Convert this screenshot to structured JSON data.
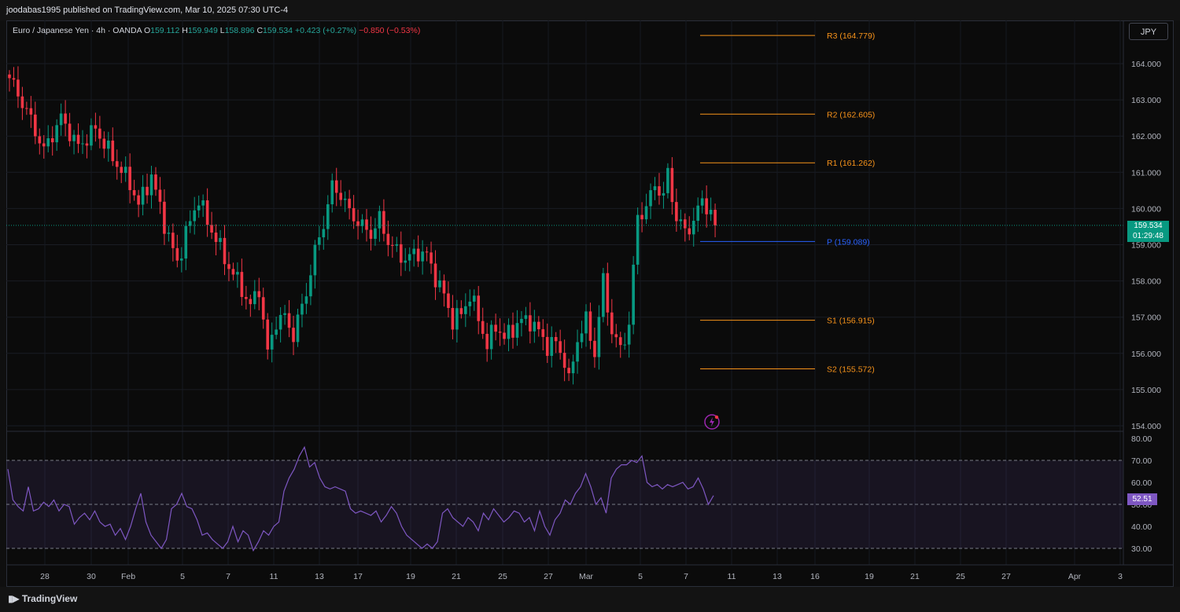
{
  "header": {
    "published": "joodabas1995 published on TradingView.com, Mar 10, 2025 07:30 UTC-4"
  },
  "legend": {
    "symbol": "Euro / Japanese Yen · 4h · OANDA",
    "o_label": "O",
    "o": "159.112",
    "h_label": "H",
    "h": "159.949",
    "l_label": "L",
    "l": "158.896",
    "c_label": "C",
    "c": "159.534",
    "change": "+0.423 (+0.27%)",
    "change2": "−0.850 (−0.53%)"
  },
  "currency_button": "JPY",
  "last_price": {
    "value": "159.534",
    "countdown": "01:29:48"
  },
  "rsi_value": "52.51",
  "brand": "TradingView",
  "chart_data": {
    "type": "candlestick",
    "price_axis": {
      "min": 154,
      "max": 164,
      "ticks": [
        "164.000",
        "163.000",
        "162.000",
        "161.000",
        "160.000",
        "159.000",
        "158.000",
        "157.000",
        "156.000",
        "155.000",
        "154.000"
      ]
    },
    "rsi_axis": {
      "min": 30,
      "max": 80,
      "ticks": [
        "80.00",
        "70.00",
        "60.00",
        "50.00",
        "40.00",
        "30.00"
      ],
      "bands": [
        30,
        50,
        70
      ]
    },
    "x_ticks": [
      "28",
      "30",
      "Feb",
      "5",
      "7",
      "11",
      "13",
      "17",
      "19",
      "21",
      "25",
      "27",
      "Mar",
      "5",
      "7",
      "11",
      "13",
      "16",
      "19",
      "21",
      "25",
      "27",
      "Apr",
      "3"
    ],
    "pivots": [
      {
        "label": "R3 (164.779)",
        "value": 164.779,
        "color": "#f7931a"
      },
      {
        "label": "R2 (162.605)",
        "value": 162.605,
        "color": "#f7931a"
      },
      {
        "label": "R1 (161.262)",
        "value": 161.262,
        "color": "#f7931a"
      },
      {
        "label": "P (159.089)",
        "value": 159.089,
        "color": "#2962ff"
      },
      {
        "label": "S1 (156.915)",
        "value": 156.915,
        "color": "#f7931a"
      },
      {
        "label": "S2 (155.572)",
        "value": 155.572,
        "color": "#f7931a"
      }
    ],
    "current_price": 159.534,
    "close_path": [
      [
        0,
        163.6
      ],
      [
        4,
        162.7
      ],
      [
        8,
        161.6
      ],
      [
        12,
        162.5
      ],
      [
        16,
        161.7
      ],
      [
        20,
        162.2
      ],
      [
        24,
        161.4
      ],
      [
        28,
        160.7
      ],
      [
        30,
        160.1
      ],
      [
        33,
        160.9
      ],
      [
        36,
        159.6
      ],
      [
        37,
        159.2
      ],
      [
        39,
        158.5
      ],
      [
        41,
        159.3
      ],
      [
        44,
        160.3
      ],
      [
        46,
        159.6
      ],
      [
        48,
        159.2
      ],
      [
        50,
        158.6
      ],
      [
        53,
        158.0
      ],
      [
        56,
        157.3
      ],
      [
        58,
        157.8
      ],
      [
        60,
        156.0
      ],
      [
        62,
        156.9
      ],
      [
        64,
        157.0
      ],
      [
        66,
        156.5
      ],
      [
        69,
        157.7
      ],
      [
        71,
        158.8
      ],
      [
        73,
        159.6
      ],
      [
        75,
        160.6
      ],
      [
        77,
        160.4
      ],
      [
        79,
        159.9
      ],
      [
        82,
        159.5
      ],
      [
        84,
        159.3
      ],
      [
        86,
        159.7
      ],
      [
        88,
        159.1
      ],
      [
        90,
        158.8
      ],
      [
        92,
        158.6
      ],
      [
        95,
        158.8
      ],
      [
        97,
        158.7
      ],
      [
        99,
        158.1
      ],
      [
        101,
        157.6
      ],
      [
        103,
        156.9
      ],
      [
        105,
        157.1
      ],
      [
        107,
        157.6
      ],
      [
        109,
        157.0
      ],
      [
        111,
        156.2
      ],
      [
        113,
        156.8
      ],
      [
        115,
        156.4
      ],
      [
        117,
        156.7
      ],
      [
        119,
        156.9
      ],
      [
        121,
        156.9
      ],
      [
        123,
        156.6
      ],
      [
        125,
        156.2
      ],
      [
        127,
        156.3
      ],
      [
        129,
        155.8
      ],
      [
        130,
        155.2
      ],
      [
        132,
        156.4
      ],
      [
        134,
        156.9
      ],
      [
        136,
        156.0
      ],
      [
        138,
        158.0
      ],
      [
        140,
        156.6
      ],
      [
        142,
        156.1
      ],
      [
        144,
        156.8
      ],
      [
        146,
        159.8
      ],
      [
        148,
        160.0
      ],
      [
        150,
        160.7
      ],
      [
        152,
        160.3
      ],
      [
        153,
        161.0
      ],
      [
        155,
        159.7
      ],
      [
        157,
        159.4
      ],
      [
        159,
        159.6
      ],
      [
        161,
        160.3
      ],
      [
        163,
        159.8
      ],
      [
        164,
        159.5
      ]
    ],
    "rsi_path": [
      [
        0,
        66
      ],
      [
        1,
        52
      ],
      [
        2,
        49
      ],
      [
        3,
        47
      ],
      [
        4,
        58
      ],
      [
        5,
        47
      ],
      [
        6,
        48
      ],
      [
        7,
        51
      ],
      [
        8,
        49
      ],
      [
        9,
        52
      ],
      [
        10,
        47
      ],
      [
        11,
        50
      ],
      [
        12,
        49
      ],
      [
        13,
        41
      ],
      [
        14,
        44
      ],
      [
        15,
        46
      ],
      [
        16,
        43
      ],
      [
        17,
        47
      ],
      [
        18,
        42
      ],
      [
        19,
        40
      ],
      [
        20,
        41
      ],
      [
        21,
        36
      ],
      [
        22,
        39
      ],
      [
        23,
        34
      ],
      [
        24,
        40
      ],
      [
        25,
        48
      ],
      [
        26,
        55
      ],
      [
        27,
        42
      ],
      [
        28,
        36
      ],
      [
        29,
        33
      ],
      [
        30,
        30
      ],
      [
        31,
        34
      ],
      [
        32,
        48
      ],
      [
        33,
        50
      ],
      [
        34,
        55
      ],
      [
        35,
        49
      ],
      [
        36,
        48
      ],
      [
        37,
        43
      ],
      [
        38,
        36
      ],
      [
        39,
        37
      ],
      [
        40,
        34
      ],
      [
        41,
        32
      ],
      [
        42,
        30
      ],
      [
        43,
        33
      ],
      [
        44,
        40
      ],
      [
        45,
        33
      ],
      [
        46,
        38
      ],
      [
        47,
        36
      ],
      [
        48,
        29
      ],
      [
        49,
        33
      ],
      [
        50,
        38
      ],
      [
        51,
        36
      ],
      [
        52,
        40
      ],
      [
        53,
        42
      ],
      [
        54,
        56
      ],
      [
        55,
        62
      ],
      [
        56,
        66
      ],
      [
        57,
        72
      ],
      [
        58,
        76
      ],
      [
        59,
        67
      ],
      [
        60,
        69
      ],
      [
        61,
        62
      ],
      [
        62,
        58
      ],
      [
        63,
        57
      ],
      [
        64,
        58
      ],
      [
        65,
        57
      ],
      [
        66,
        56
      ],
      [
        67,
        48
      ],
      [
        68,
        46
      ],
      [
        69,
        47
      ],
      [
        70,
        46
      ],
      [
        71,
        45
      ],
      [
        72,
        47
      ],
      [
        73,
        42
      ],
      [
        74,
        45
      ],
      [
        75,
        49
      ],
      [
        76,
        46
      ],
      [
        77,
        40
      ],
      [
        78,
        36
      ],
      [
        79,
        34
      ],
      [
        80,
        32
      ],
      [
        81,
        30
      ],
      [
        82,
        32
      ],
      [
        83,
        30
      ],
      [
        84,
        33
      ],
      [
        85,
        46
      ],
      [
        86,
        48
      ],
      [
        87,
        44
      ],
      [
        88,
        42
      ],
      [
        89,
        40
      ],
      [
        90,
        44
      ],
      [
        91,
        42
      ],
      [
        92,
        38
      ],
      [
        93,
        46
      ],
      [
        94,
        43
      ],
      [
        95,
        48
      ],
      [
        96,
        45
      ],
      [
        97,
        42
      ],
      [
        98,
        44
      ],
      [
        99,
        47
      ],
      [
        100,
        46
      ],
      [
        101,
        42
      ],
      [
        102,
        44
      ],
      [
        103,
        38
      ],
      [
        104,
        47
      ],
      [
        105,
        40
      ],
      [
        106,
        36
      ],
      [
        107,
        43
      ],
      [
        108,
        46
      ],
      [
        109,
        52
      ],
      [
        110,
        50
      ],
      [
        111,
        55
      ],
      [
        112,
        58
      ],
      [
        113,
        64
      ],
      [
        114,
        58
      ],
      [
        115,
        50
      ],
      [
        116,
        53
      ],
      [
        117,
        46
      ],
      [
        118,
        62
      ],
      [
        119,
        66
      ],
      [
        120,
        68
      ],
      [
        121,
        68
      ],
      [
        122,
        70
      ],
      [
        123,
        69
      ],
      [
        124,
        72
      ],
      [
        125,
        60
      ],
      [
        126,
        58
      ],
      [
        127,
        59
      ],
      [
        128,
        57
      ],
      [
        129,
        59
      ],
      [
        130,
        58
      ],
      [
        131,
        59
      ],
      [
        132,
        60
      ],
      [
        133,
        57
      ],
      [
        134,
        58
      ],
      [
        135,
        62
      ],
      [
        136,
        57
      ],
      [
        137,
        50
      ],
      [
        138,
        54
      ]
    ]
  }
}
